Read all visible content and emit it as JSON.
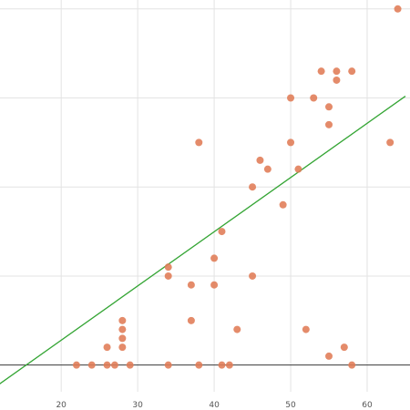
{
  "chart_data": {
    "type": "scatter",
    "title": "",
    "xlabel": "",
    "ylabel": "",
    "xlim": [
      12,
      65.6
    ],
    "ylim": [
      -3,
      41
    ],
    "x_ticks": [
      20,
      30,
      40,
      50,
      60
    ],
    "y_grid": [
      0,
      10,
      20,
      30,
      40
    ],
    "grid": true,
    "legend": "none",
    "colors": {
      "points": "#e07b55",
      "trendline": "#34a534",
      "baseline": "#3a3a3a",
      "grid": "#e3e3e3"
    },
    "trendline": {
      "from": [
        10,
        -3.3
      ],
      "to": [
        65,
        30.2
      ]
    },
    "series": [
      {
        "points": [
          [
            22,
            0
          ],
          [
            24,
            0
          ],
          [
            26,
            0
          ],
          [
            27,
            0
          ],
          [
            29,
            0
          ],
          [
            34,
            0
          ],
          [
            38,
            0
          ],
          [
            41,
            0
          ],
          [
            42,
            0
          ],
          [
            58,
            0
          ],
          [
            26,
            2
          ],
          [
            28,
            2
          ],
          [
            28,
            3
          ],
          [
            28,
            4
          ],
          [
            28,
            5
          ],
          [
            34,
            10
          ],
          [
            34,
            11
          ],
          [
            37,
            9
          ],
          [
            37,
            5
          ],
          [
            40,
            9
          ],
          [
            40,
            12
          ],
          [
            41,
            15
          ],
          [
            43,
            4
          ],
          [
            45,
            10
          ],
          [
            38,
            25
          ],
          [
            45,
            20
          ],
          [
            46,
            23
          ],
          [
            47,
            22
          ],
          [
            49,
            18
          ],
          [
            50,
            25
          ],
          [
            51,
            22
          ],
          [
            50,
            30
          ],
          [
            53,
            30
          ],
          [
            54,
            33
          ],
          [
            55,
            29
          ],
          [
            55,
            27
          ],
          [
            56,
            32
          ],
          [
            56,
            33
          ],
          [
            58,
            33
          ],
          [
            52,
            4
          ],
          [
            55,
            1
          ],
          [
            57,
            2
          ],
          [
            63,
            25
          ],
          [
            64,
            40
          ]
        ]
      }
    ]
  }
}
